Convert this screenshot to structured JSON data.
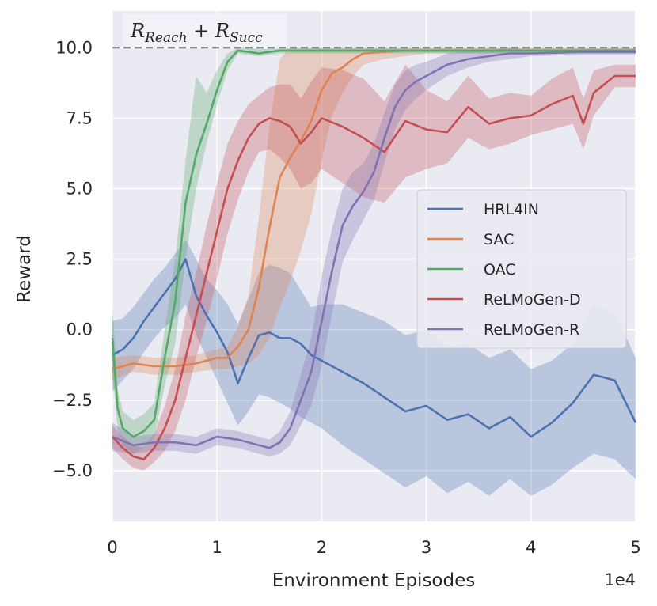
{
  "chart_data": {
    "type": "line",
    "xlabel": "Environment Episodes",
    "ylabel": "Reward",
    "x_offset_label": "1e4",
    "xlim": [
      0,
      5
    ],
    "ylim": [
      -6.8,
      11.3
    ],
    "xticks": [
      0,
      1,
      2,
      3,
      4,
      5
    ],
    "xtick_labels": [
      "0",
      "1",
      "2",
      "3",
      "4",
      "5"
    ],
    "yticks": [
      -5.0,
      -2.5,
      0.0,
      2.5,
      5.0,
      7.5,
      10.0
    ],
    "ytick_labels": [
      "−5.0",
      "−2.5",
      "0.0",
      "2.5",
      "5.0",
      "7.5",
      "10.0"
    ],
    "grid": true,
    "reference_line": {
      "y": 10.0,
      "style": "dashed",
      "color": "#8c8c8c",
      "annotation_base": [
        "R",
        "Reach",
        " + ",
        "R",
        "Succ"
      ]
    },
    "legend": {
      "position": "center-right",
      "entries": [
        "HRL4IN",
        "SAC",
        "OAC",
        "ReLMoGen-D",
        "ReLMoGen-R"
      ]
    },
    "series": [
      {
        "name": "HRL4IN",
        "color": "#4c72b0",
        "x": [
          0,
          0.1,
          0.2,
          0.3,
          0.4,
          0.5,
          0.6,
          0.7,
          0.8,
          0.9,
          1.0,
          1.1,
          1.2,
          1.3,
          1.4,
          1.5,
          1.6,
          1.7,
          1.8,
          1.9,
          2.0,
          2.2,
          2.4,
          2.6,
          2.8,
          3.0,
          3.2,
          3.4,
          3.6,
          3.8,
          4.0,
          4.2,
          4.4,
          4.6,
          4.8,
          5.0
        ],
        "values": [
          -0.9,
          -0.7,
          -0.3,
          0.3,
          0.8,
          1.3,
          1.8,
          2.5,
          1.2,
          0.5,
          -0.1,
          -0.8,
          -1.9,
          -1.0,
          -0.2,
          -0.1,
          -0.3,
          -0.3,
          -0.5,
          -0.9,
          -1.1,
          -1.5,
          -1.9,
          -2.4,
          -2.9,
          -2.7,
          -3.2,
          -3.0,
          -3.5,
          -3.1,
          -3.8,
          -3.3,
          -2.6,
          -1.6,
          -1.8,
          -3.3
        ],
        "lower": [
          -2.2,
          -1.8,
          -1.4,
          -0.8,
          -0.3,
          0.1,
          0.4,
          0.9,
          -0.2,
          -1.0,
          -1.8,
          -2.6,
          -3.4,
          -2.9,
          -2.3,
          -2.4,
          -2.6,
          -2.8,
          -3.1,
          -3.3,
          -3.5,
          -4.1,
          -4.6,
          -5.1,
          -5.6,
          -5.2,
          -5.8,
          -5.4,
          -5.9,
          -5.3,
          -5.9,
          -5.5,
          -4.9,
          -4.4,
          -4.6,
          -5.3
        ],
        "upper": [
          0.3,
          0.4,
          0.8,
          1.3,
          1.8,
          2.2,
          2.7,
          3.2,
          2.5,
          1.8,
          1.4,
          0.9,
          0.2,
          1.1,
          2.0,
          2.3,
          2.2,
          2.0,
          1.4,
          0.8,
          0.9,
          0.9,
          0.6,
          0.3,
          -0.2,
          0.0,
          -0.6,
          -0.5,
          -1.0,
          -0.7,
          -1.4,
          -1.1,
          -0.5,
          0.9,
          0.6,
          -1.0
        ]
      },
      {
        "name": "SAC",
        "color": "#dd8452",
        "x": [
          0,
          0.2,
          0.4,
          0.6,
          0.8,
          1.0,
          1.1,
          1.2,
          1.3,
          1.4,
          1.5,
          1.6,
          1.7,
          1.8,
          1.9,
          2.0,
          2.1,
          2.2,
          2.3,
          2.4,
          2.6,
          2.8,
          3.0,
          3.5,
          4.0,
          4.5,
          5.0
        ],
        "values": [
          -1.4,
          -1.2,
          -1.3,
          -1.3,
          -1.2,
          -1.0,
          -1.0,
          -0.6,
          0.0,
          1.5,
          3.6,
          5.4,
          6.1,
          6.7,
          7.4,
          8.5,
          9.1,
          9.3,
          9.6,
          9.8,
          9.85,
          9.9,
          9.9,
          9.9,
          9.9,
          9.9,
          9.9
        ],
        "lower": [
          -1.8,
          -1.5,
          -1.6,
          -1.6,
          -1.5,
          -1.4,
          -1.4,
          -1.3,
          -1.2,
          -0.9,
          -0.3,
          0.8,
          1.7,
          2.8,
          4.1,
          6.0,
          7.6,
          8.4,
          9.0,
          9.4,
          9.6,
          9.7,
          9.8,
          9.8,
          9.8,
          9.8,
          9.8
        ],
        "upper": [
          -1.0,
          -0.9,
          -1.0,
          -1.0,
          -0.9,
          -0.7,
          -0.6,
          0.1,
          1.2,
          4.0,
          7.2,
          9.6,
          10.0,
          10.0,
          10.0,
          10.0,
          10.0,
          10.0,
          10.0,
          10.0,
          10.0,
          10.0,
          10.0,
          10.0,
          10.0,
          10.0,
          10.0
        ]
      },
      {
        "name": "OAC",
        "color": "#55a868",
        "x": [
          0,
          0.05,
          0.1,
          0.2,
          0.3,
          0.4,
          0.5,
          0.6,
          0.7,
          0.8,
          0.9,
          1.0,
          1.1,
          1.2,
          1.3,
          1.4,
          1.6,
          2.0,
          3.0,
          4.0,
          5.0
        ],
        "values": [
          -0.3,
          -2.8,
          -3.5,
          -3.8,
          -3.6,
          -3.2,
          -1.0,
          1.0,
          4.5,
          6.2,
          7.3,
          8.5,
          9.5,
          9.9,
          9.85,
          9.8,
          9.9,
          9.9,
          9.9,
          9.9,
          9.9
        ],
        "lower": [
          -1.5,
          -3.5,
          -4.1,
          -4.4,
          -4.2,
          -3.8,
          -2.0,
          -0.5,
          2.5,
          5.0,
          6.6,
          8.0,
          9.2,
          9.8,
          9.75,
          9.7,
          9.8,
          9.8,
          9.8,
          9.8,
          9.8
        ],
        "upper": [
          0.9,
          -2.1,
          -2.9,
          -3.2,
          -3.0,
          -2.6,
          0.0,
          2.5,
          6.0,
          9.0,
          8.4,
          9.2,
          9.8,
          10.0,
          10.0,
          9.95,
          9.98,
          9.98,
          9.98,
          9.98,
          9.98
        ]
      },
      {
        "name": "ReLMoGen-D",
        "color": "#c44e52",
        "x": [
          0,
          0.1,
          0.2,
          0.3,
          0.4,
          0.5,
          0.6,
          0.7,
          0.8,
          0.9,
          1.0,
          1.1,
          1.2,
          1.3,
          1.4,
          1.5,
          1.6,
          1.7,
          1.8,
          1.9,
          2.0,
          2.2,
          2.4,
          2.6,
          2.8,
          3.0,
          3.2,
          3.4,
          3.6,
          3.8,
          4.0,
          4.2,
          4.4,
          4.5,
          4.6,
          4.8,
          5.0
        ],
        "values": [
          -3.8,
          -4.2,
          -4.5,
          -4.6,
          -4.2,
          -3.5,
          -2.5,
          -1.0,
          0.5,
          2.0,
          3.5,
          5.0,
          6.0,
          6.8,
          7.3,
          7.5,
          7.4,
          7.2,
          6.6,
          7.0,
          7.5,
          7.2,
          6.8,
          6.3,
          7.4,
          7.1,
          7.0,
          7.9,
          7.3,
          7.5,
          7.6,
          8.0,
          8.3,
          7.3,
          8.4,
          9.0,
          9.0
        ],
        "lower": [
          -4.2,
          -4.6,
          -4.9,
          -5.0,
          -4.7,
          -4.3,
          -3.6,
          -2.5,
          -1.0,
          0.3,
          1.8,
          3.4,
          4.6,
          5.6,
          6.3,
          6.4,
          6.1,
          5.7,
          5.0,
          5.2,
          5.7,
          5.2,
          4.7,
          4.5,
          5.4,
          5.7,
          5.9,
          6.8,
          6.4,
          6.6,
          6.9,
          7.1,
          7.3,
          6.4,
          7.6,
          8.6,
          8.6
        ],
        "upper": [
          -3.4,
          -3.8,
          -4.1,
          -4.2,
          -3.7,
          -2.7,
          -1.4,
          0.5,
          2.0,
          3.7,
          5.2,
          6.6,
          7.4,
          8.0,
          8.3,
          8.6,
          8.7,
          8.7,
          8.2,
          8.8,
          9.3,
          9.2,
          8.9,
          8.1,
          9.4,
          8.5,
          8.1,
          9.0,
          8.2,
          8.4,
          8.3,
          8.9,
          9.3,
          8.2,
          9.2,
          9.4,
          9.4
        ]
      },
      {
        "name": "ReLMoGen-R",
        "color": "#8172b2",
        "x": [
          0,
          0.2,
          0.4,
          0.6,
          0.8,
          1.0,
          1.2,
          1.4,
          1.5,
          1.6,
          1.7,
          1.8,
          1.9,
          2.0,
          2.1,
          2.2,
          2.3,
          2.4,
          2.5,
          2.6,
          2.7,
          2.8,
          2.9,
          3.0,
          3.2,
          3.4,
          3.6,
          3.8,
          4.0,
          4.5,
          5.0
        ],
        "values": [
          -3.8,
          -4.1,
          -4.0,
          -4.0,
          -4.1,
          -3.8,
          -3.9,
          -4.1,
          -4.2,
          -4.0,
          -3.5,
          -2.5,
          -1.5,
          0.3,
          2.1,
          3.7,
          4.4,
          4.9,
          5.6,
          6.8,
          7.9,
          8.5,
          8.8,
          9.0,
          9.4,
          9.6,
          9.7,
          9.8,
          9.8,
          9.85,
          9.85
        ],
        "lower": [
          -4.3,
          -4.4,
          -4.3,
          -4.3,
          -4.4,
          -4.1,
          -4.2,
          -4.4,
          -4.5,
          -4.4,
          -4.1,
          -3.4,
          -2.7,
          -1.3,
          0.6,
          2.4,
          3.2,
          3.9,
          4.6,
          5.9,
          7.1,
          7.8,
          8.2,
          8.5,
          9.0,
          9.3,
          9.5,
          9.6,
          9.7,
          9.75,
          9.75
        ],
        "upper": [
          -3.3,
          -3.8,
          -3.7,
          -3.7,
          -3.8,
          -3.5,
          -3.6,
          -3.8,
          -3.9,
          -3.6,
          -2.9,
          -1.6,
          -0.3,
          1.9,
          3.6,
          5.0,
          5.6,
          5.9,
          6.6,
          7.7,
          8.7,
          9.2,
          9.4,
          9.5,
          9.8,
          9.9,
          9.9,
          10.0,
          9.9,
          9.95,
          9.95
        ]
      }
    ]
  }
}
